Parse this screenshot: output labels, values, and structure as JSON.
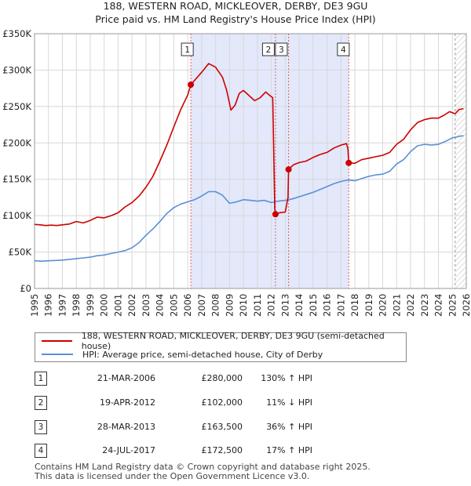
{
  "title_line1": "188, WESTERN ROAD, MICKLEOVER, DERBY, DE3 9GU",
  "title_line2": "Price paid vs. HM Land Registry's House Price Index (HPI)",
  "chart_data": {
    "type": "line",
    "xlim": [
      1995,
      2026
    ],
    "ylim": [
      0,
      350000
    ],
    "x_ticks": [
      1995,
      1996,
      1997,
      1998,
      1999,
      2000,
      2001,
      2002,
      2003,
      2004,
      2005,
      2006,
      2007,
      2008,
      2009,
      2010,
      2011,
      2012,
      2013,
      2014,
      2015,
      2016,
      2017,
      2018,
      2019,
      2020,
      2021,
      2022,
      2023,
      2024,
      2025,
      2026
    ],
    "y_ticks": [
      {
        "value": 0,
        "label": "£0"
      },
      {
        "value": 50000,
        "label": "£50K"
      },
      {
        "value": 100000,
        "label": "£100K"
      },
      {
        "value": 150000,
        "label": "£150K"
      },
      {
        "value": 200000,
        "label": "£200K"
      },
      {
        "value": 250000,
        "label": "£250K"
      },
      {
        "value": 300000,
        "label": "£300K"
      },
      {
        "value": 350000,
        "label": "£350K"
      }
    ],
    "grid": true,
    "colors": {
      "property": "#cc0000",
      "hpi": "#5b8fd6",
      "shade": "#e3e8fb",
      "grid": "#d8d8d8",
      "vline": "#e06060",
      "forecast": "#999999"
    },
    "shaded_ranges": [
      [
        2006.22,
        2017.56
      ]
    ],
    "forecast_start": 2025.2,
    "series": [
      {
        "name": "188, WESTERN ROAD, MICKLEOVER, DERBY, DE3 9GU (semi-detached house)",
        "key": "property",
        "points": [
          [
            1995.0,
            88000
          ],
          [
            1995.4,
            87500
          ],
          [
            1995.8,
            86500
          ],
          [
            1996.2,
            87000
          ],
          [
            1996.6,
            86500
          ],
          [
            1997.0,
            87500
          ],
          [
            1997.5,
            88500
          ],
          [
            1998.0,
            92000
          ],
          [
            1998.5,
            90000
          ],
          [
            1999.0,
            93500
          ],
          [
            1999.5,
            98000
          ],
          [
            2000.0,
            97000
          ],
          [
            2000.5,
            100000
          ],
          [
            2001.0,
            104000
          ],
          [
            2001.5,
            112000
          ],
          [
            2002.0,
            118000
          ],
          [
            2002.5,
            127000
          ],
          [
            2003.0,
            139000
          ],
          [
            2003.5,
            154000
          ],
          [
            2004.0,
            175000
          ],
          [
            2004.5,
            197000
          ],
          [
            2005.0,
            222000
          ],
          [
            2005.5,
            246000
          ],
          [
            2006.0,
            266000
          ],
          [
            2006.22,
            280000
          ],
          [
            2006.5,
            286000
          ],
          [
            2007.0,
            297000
          ],
          [
            2007.5,
            309000
          ],
          [
            2008.0,
            304000
          ],
          [
            2008.5,
            290000
          ],
          [
            2008.8,
            272000
          ],
          [
            2009.1,
            245000
          ],
          [
            2009.4,
            252000
          ],
          [
            2009.7,
            268000
          ],
          [
            2010.0,
            272000
          ],
          [
            2010.4,
            265000
          ],
          [
            2010.8,
            258000
          ],
          [
            2011.2,
            262000
          ],
          [
            2011.6,
            270000
          ],
          [
            2011.9,
            265000
          ],
          [
            2012.1,
            262000
          ],
          [
            2012.2,
            160000
          ],
          [
            2012.25,
            110000
          ],
          [
            2012.3,
            102000
          ],
          [
            2012.6,
            104000
          ],
          [
            2013.0,
            105000
          ],
          [
            2013.2,
            125000
          ],
          [
            2013.24,
            163500
          ],
          [
            2013.6,
            170000
          ],
          [
            2014.0,
            173000
          ],
          [
            2014.5,
            175000
          ],
          [
            2015.0,
            180000
          ],
          [
            2015.5,
            184000
          ],
          [
            2016.0,
            187000
          ],
          [
            2016.5,
            193000
          ],
          [
            2017.0,
            197000
          ],
          [
            2017.4,
            199000
          ],
          [
            2017.5,
            192000
          ],
          [
            2017.56,
            172500
          ],
          [
            2018.0,
            172000
          ],
          [
            2018.5,
            177000
          ],
          [
            2019.0,
            179000
          ],
          [
            2019.5,
            181000
          ],
          [
            2020.0,
            183000
          ],
          [
            2020.5,
            187000
          ],
          [
            2021.0,
            198000
          ],
          [
            2021.5,
            205000
          ],
          [
            2022.0,
            218000
          ],
          [
            2022.5,
            228000
          ],
          [
            2023.0,
            232000
          ],
          [
            2023.5,
            234000
          ],
          [
            2024.0,
            234000
          ],
          [
            2024.4,
            238000
          ],
          [
            2024.8,
            243000
          ],
          [
            2025.2,
            240000
          ],
          [
            2025.5,
            246000
          ],
          [
            2025.8,
            247000
          ]
        ]
      },
      {
        "name": "HPI: Average price, semi-detached house, City of Derby",
        "key": "hpi",
        "points": [
          [
            1995.0,
            38000
          ],
          [
            1995.5,
            37500
          ],
          [
            1996.0,
            38000
          ],
          [
            1996.5,
            38500
          ],
          [
            1997.0,
            39000
          ],
          [
            1997.5,
            40000
          ],
          [
            1998.0,
            41000
          ],
          [
            1998.5,
            42000
          ],
          [
            1999.0,
            43000
          ],
          [
            1999.5,
            45000
          ],
          [
            2000.0,
            46000
          ],
          [
            2000.5,
            48000
          ],
          [
            2001.0,
            50000
          ],
          [
            2001.5,
            52000
          ],
          [
            2002.0,
            56000
          ],
          [
            2002.5,
            63000
          ],
          [
            2003.0,
            73000
          ],
          [
            2003.5,
            82000
          ],
          [
            2004.0,
            92000
          ],
          [
            2004.5,
            103000
          ],
          [
            2005.0,
            111000
          ],
          [
            2005.5,
            116000
          ],
          [
            2006.0,
            119000
          ],
          [
            2006.5,
            122000
          ],
          [
            2007.0,
            127000
          ],
          [
            2007.5,
            133000
          ],
          [
            2008.0,
            133000
          ],
          [
            2008.5,
            128000
          ],
          [
            2009.0,
            117000
          ],
          [
            2009.5,
            119000
          ],
          [
            2010.0,
            122000
          ],
          [
            2010.5,
            121000
          ],
          [
            2011.0,
            120000
          ],
          [
            2011.5,
            121000
          ],
          [
            2012.0,
            118000
          ],
          [
            2012.5,
            120000
          ],
          [
            2013.0,
            121000
          ],
          [
            2013.5,
            123000
          ],
          [
            2014.0,
            126000
          ],
          [
            2014.5,
            129000
          ],
          [
            2015.0,
            132000
          ],
          [
            2015.5,
            136000
          ],
          [
            2016.0,
            140000
          ],
          [
            2016.5,
            144000
          ],
          [
            2017.0,
            147000
          ],
          [
            2017.5,
            149000
          ],
          [
            2018.0,
            148000
          ],
          [
            2018.5,
            151000
          ],
          [
            2019.0,
            154000
          ],
          [
            2019.5,
            156000
          ],
          [
            2020.0,
            157000
          ],
          [
            2020.5,
            161000
          ],
          [
            2021.0,
            171000
          ],
          [
            2021.5,
            177000
          ],
          [
            2022.0,
            188000
          ],
          [
            2022.5,
            196000
          ],
          [
            2023.0,
            198000
          ],
          [
            2023.5,
            197000
          ],
          [
            2024.0,
            198000
          ],
          [
            2024.5,
            202000
          ],
          [
            2025.0,
            207000
          ],
          [
            2025.5,
            209000
          ],
          [
            2025.8,
            210000
          ]
        ]
      }
    ],
    "transactions": [
      {
        "label": "1",
        "x": 2006.22,
        "value": 280000
      },
      {
        "label": "2",
        "x": 2012.3,
        "value": 102000
      },
      {
        "label": "3",
        "x": 2013.24,
        "value": 163500
      },
      {
        "label": "4",
        "x": 2017.56,
        "value": 172500
      }
    ]
  },
  "legend": {
    "property_label": "188, WESTERN ROAD, MICKLEOVER, DERBY, DE3 9GU (semi-detached house)",
    "hpi_label": "HPI: Average price, semi-detached house, City of Derby"
  },
  "transactions_table": [
    {
      "num": "1",
      "date": "21-MAR-2006",
      "price": "£280,000",
      "hpi": "130% ↑ HPI"
    },
    {
      "num": "2",
      "date": "19-APR-2012",
      "price": "£102,000",
      "hpi": "11% ↓ HPI"
    },
    {
      "num": "3",
      "date": "28-MAR-2013",
      "price": "£163,500",
      "hpi": "36% ↑ HPI"
    },
    {
      "num": "4",
      "date": "24-JUL-2017",
      "price": "£172,500",
      "hpi": "17% ↑ HPI"
    }
  ],
  "footer": {
    "line1": "Contains HM Land Registry data © Crown copyright and database right 2025.",
    "line2": "This data is licensed under the Open Government Licence v3.0."
  }
}
